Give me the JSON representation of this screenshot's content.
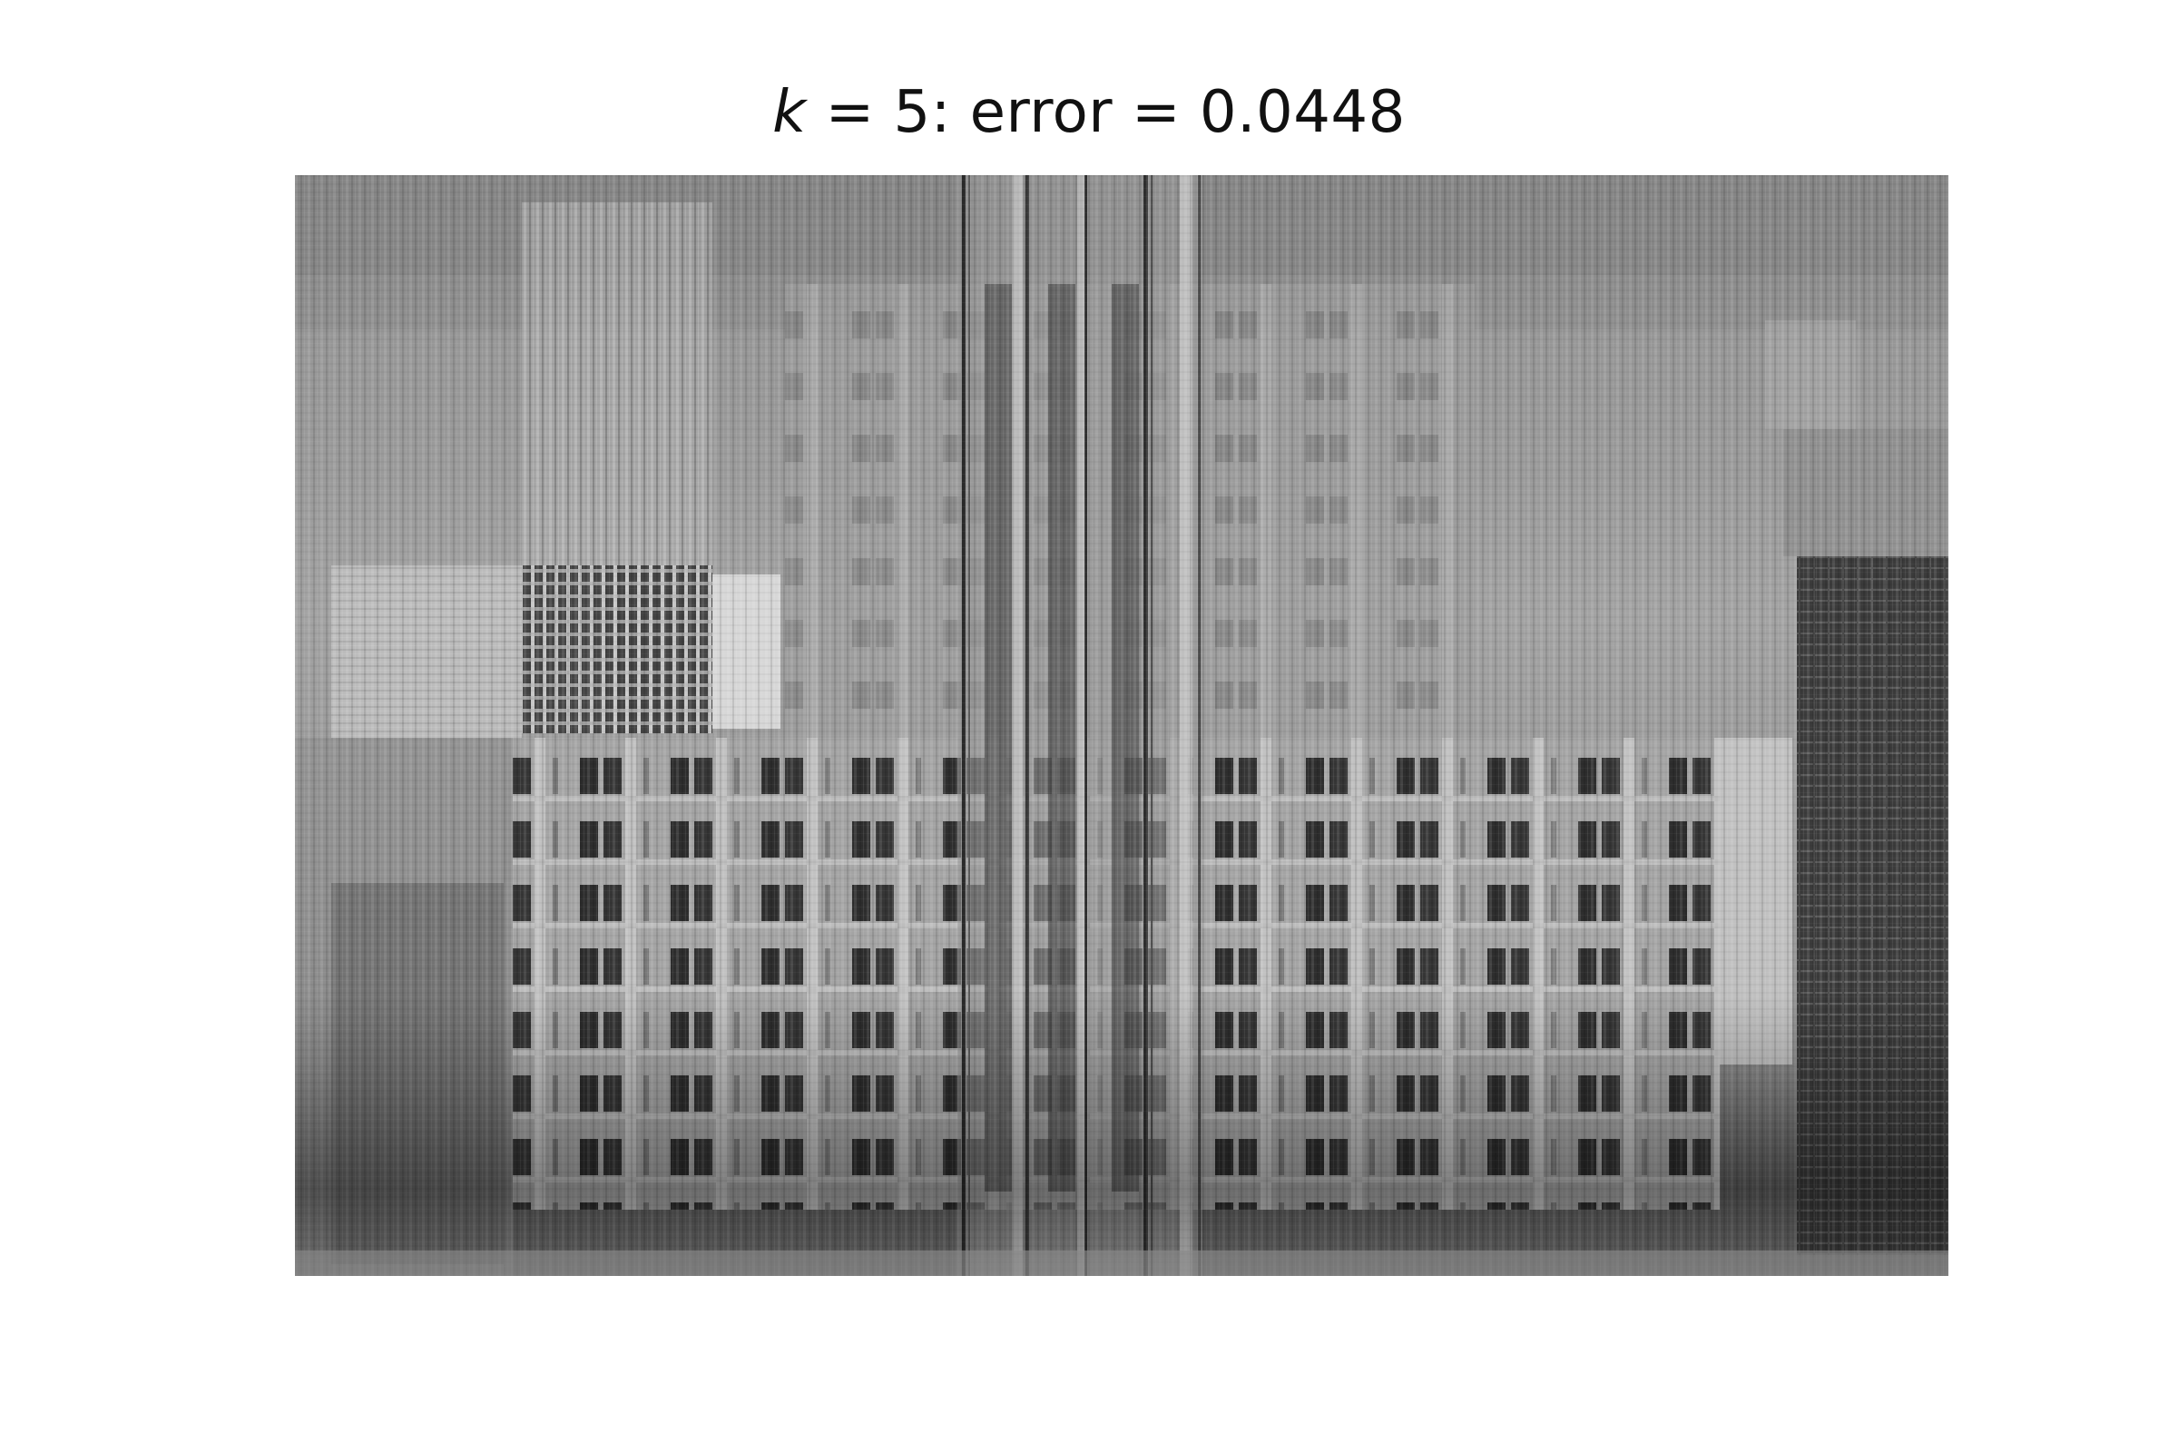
{
  "figure": {
    "title": {
      "variable": "k",
      "rest": " = 5: error = 0.0448"
    },
    "image": {
      "description_name": "low-rank-reconstruction-grayscale",
      "rank_k": 5,
      "error": 0.0448
    }
  }
}
